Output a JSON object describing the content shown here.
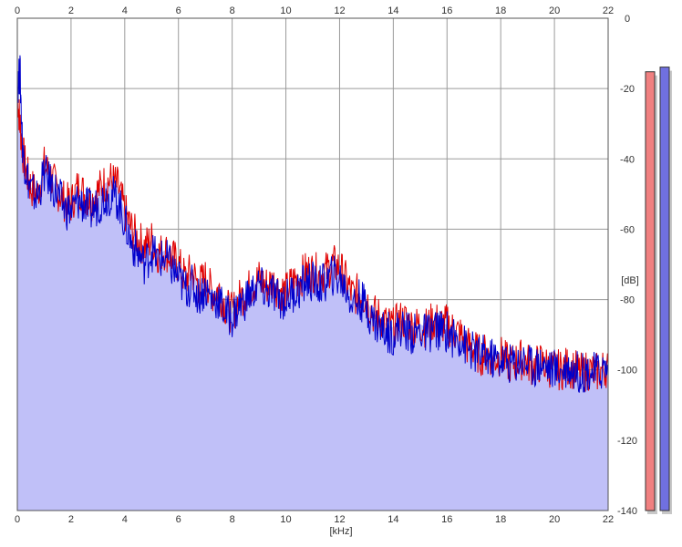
{
  "chart_data": {
    "type": "line",
    "xlabel": "[kHz]",
    "ylabel": "[dB]",
    "xlim": [
      0,
      22
    ],
    "ylim": [
      -140,
      0
    ],
    "x_ticks": [
      0,
      2,
      4,
      6,
      8,
      10,
      12,
      14,
      16,
      18,
      20,
      22
    ],
    "y_ticks": [
      0,
      -20,
      -40,
      -60,
      -80,
      -100,
      -120,
      -140
    ],
    "grid": true,
    "series": [
      {
        "color": "#e00000",
        "x": [
          0.0,
          0.1,
          0.2,
          0.35,
          0.5,
          0.75,
          1.0,
          1.25,
          1.5,
          1.75,
          2.0,
          2.25,
          2.5,
          2.75,
          3.0,
          3.25,
          3.5,
          3.75,
          4.0,
          4.25,
          4.5,
          4.75,
          5.0,
          5.25,
          5.5,
          5.75,
          6.0,
          6.25,
          6.5,
          6.75,
          7.0,
          7.25,
          7.5,
          7.75,
          8.0,
          8.25,
          8.5,
          8.75,
          9.0,
          9.25,
          9.5,
          9.75,
          10.0,
          10.25,
          10.5,
          10.75,
          11.0,
          11.25,
          11.5,
          11.75,
          12.0,
          12.25,
          12.5,
          12.75,
          13.0,
          13.25,
          13.5,
          13.75,
          14.0,
          14.25,
          14.5,
          14.75,
          15.0,
          15.25,
          15.5,
          15.75,
          16.0,
          16.25,
          16.5,
          16.75,
          17.0,
          17.25,
          17.5,
          17.75,
          18.0,
          18.25,
          18.5,
          18.75,
          19.0,
          19.25,
          19.5,
          19.75,
          20.0,
          20.25,
          20.5,
          20.75,
          21.0,
          21.25,
          21.5,
          21.75,
          22.0
        ],
        "y": [
          -22,
          -30,
          -38,
          -44,
          -48,
          -50,
          -42,
          -45,
          -49,
          -52,
          -53,
          -48,
          -50,
          -52,
          -49,
          -47,
          -46,
          -48,
          -55,
          -60,
          -63,
          -65,
          -63,
          -67,
          -66,
          -68,
          -70,
          -74,
          -72,
          -76,
          -74,
          -78,
          -77,
          -82,
          -84,
          -80,
          -78,
          -76,
          -74,
          -76,
          -75,
          -77,
          -78,
          -75,
          -74,
          -72,
          -72,
          -73,
          -72,
          -70,
          -71,
          -75,
          -79,
          -78,
          -80,
          -84,
          -85,
          -87,
          -88,
          -86,
          -86,
          -88,
          -87,
          -88,
          -86,
          -87,
          -87,
          -89,
          -90,
          -93,
          -94,
          -96,
          -95,
          -97,
          -96,
          -98,
          -98,
          -97,
          -98,
          -99,
          -98,
          -99,
          -100,
          -100,
          -99,
          -100,
          -101,
          -100,
          -101,
          -100,
          -99
        ]
      },
      {
        "color": "#0000cc",
        "x": [
          0.0,
          0.1,
          0.2,
          0.35,
          0.5,
          0.75,
          1.0,
          1.25,
          1.5,
          1.75,
          2.0,
          2.25,
          2.5,
          2.75,
          3.0,
          3.25,
          3.5,
          3.75,
          4.0,
          4.25,
          4.5,
          4.75,
          5.0,
          5.25,
          5.5,
          5.75,
          6.0,
          6.25,
          6.5,
          6.75,
          7.0,
          7.25,
          7.5,
          7.75,
          8.0,
          8.25,
          8.5,
          8.75,
          9.0,
          9.25,
          9.5,
          9.75,
          10.0,
          10.25,
          10.5,
          10.75,
          11.0,
          11.25,
          11.5,
          11.75,
          12.0,
          12.25,
          12.5,
          12.75,
          13.0,
          13.25,
          13.5,
          13.75,
          14.0,
          14.25,
          14.5,
          14.75,
          15.0,
          15.25,
          15.5,
          15.75,
          16.0,
          16.25,
          16.5,
          16.75,
          17.0,
          17.25,
          17.5,
          17.75,
          18.0,
          18.25,
          18.5,
          18.75,
          19.0,
          19.25,
          19.5,
          19.75,
          20.0,
          20.25,
          20.5,
          20.75,
          21.0,
          21.25,
          21.5,
          21.75,
          22.0
        ],
        "y": [
          -20,
          -15,
          -38,
          -44,
          -49,
          -51,
          -44,
          -47,
          -50,
          -54,
          -55,
          -52,
          -53,
          -55,
          -53,
          -51,
          -50,
          -52,
          -58,
          -64,
          -67,
          -70,
          -66,
          -69,
          -68,
          -71,
          -74,
          -77,
          -76,
          -79,
          -77,
          -80,
          -80,
          -84,
          -85,
          -82,
          -80,
          -78,
          -76,
          -78,
          -78,
          -80,
          -80,
          -78,
          -77,
          -75,
          -75,
          -76,
          -75,
          -73,
          -74,
          -77,
          -81,
          -80,
          -82,
          -86,
          -88,
          -89,
          -90,
          -88,
          -89,
          -90,
          -89,
          -90,
          -88,
          -89,
          -89,
          -91,
          -91,
          -94,
          -95,
          -96,
          -96,
          -97,
          -97,
          -98,
          -98,
          -97,
          -98,
          -99,
          -98,
          -99,
          -100,
          -100,
          -99,
          -100,
          -101,
          -100,
          -101,
          -100,
          -99
        ]
      }
    ],
    "fill_color": "#c0c0f8",
    "level_meters": [
      {
        "color": "#f08080",
        "level": 0.94
      },
      {
        "color": "#7070e0",
        "level": 0.95
      }
    ]
  }
}
